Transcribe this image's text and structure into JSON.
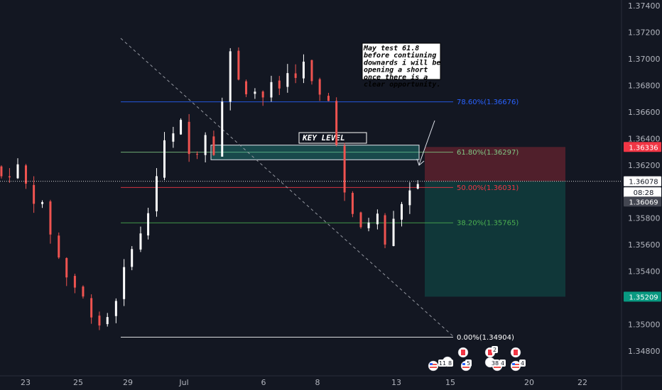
{
  "chart_data": {
    "type": "candlestick",
    "y_axis": {
      "min": 1.347,
      "max": 1.375,
      "tick_labels": [
        "1.37400",
        "1.37200",
        "1.37000",
        "1.36800",
        "1.36600",
        "1.36400",
        "1.36200",
        "1.35800",
        "1.35600",
        "1.35400",
        "1.35000",
        "1.34800"
      ]
    },
    "x_axis": {
      "tick_labels": [
        "23",
        "25",
        "29",
        "Jul",
        "6",
        "8",
        "13",
        "15",
        "20",
        "22"
      ]
    },
    "price_tags": [
      {
        "label": "1.36336",
        "value": 1.36336,
        "color": "#f23645"
      },
      {
        "label": "1.36078",
        "value": 1.36078,
        "color": "#ffffff"
      },
      {
        "label": "08:28",
        "value": 1.35995,
        "color": "#ffffff"
      },
      {
        "label": "1.36069",
        "value": 1.35925,
        "color": "#434651"
      },
      {
        "label": "1.35209",
        "value": 1.35209,
        "color": "#089981"
      }
    ],
    "fibonacci": [
      {
        "label": "0.00%(1.34904)",
        "value": 1.34904,
        "color": "#ffffff"
      },
      {
        "label": "38.20%(1.35765)",
        "value": 1.35765,
        "color": "#4caf50"
      },
      {
        "label": "50.00%(1.36031)",
        "value": 1.36031,
        "color": "#f23645"
      },
      {
        "label": "61.80%(1.36297)",
        "value": 1.36297,
        "color": "#81c784"
      },
      {
        "label": "78.60%(1.36676)",
        "value": 1.36676,
        "color": "#2962ff"
      }
    ],
    "key_level": {
      "label": "KEY LEVEL",
      "low": 1.3624,
      "high": 1.3635
    },
    "short_position": {
      "entry": 1.36078,
      "stop": 1.36336,
      "target": 1.35209
    },
    "annotation": "May test 61.8 before contiuning downards i will be opening a short once there is a clear opportunity.",
    "events": [
      {
        "count": "11"
      },
      {
        "count": "8"
      },
      {
        "count": "5"
      },
      {
        "count": "2"
      },
      {
        "count": "38"
      },
      {
        "count": "4"
      },
      {
        "count": "4"
      }
    ],
    "candle_path": [
      [
        0,
        1.3619
      ],
      [
        0.5,
        1.3611
      ],
      [
        1.5,
        1.3618
      ],
      [
        2.2,
        1.3599
      ],
      [
        3.0,
        1.3588
      ],
      [
        3.6,
        1.3566
      ],
      [
        4.2,
        1.3542
      ],
      [
        5.0,
        1.3528
      ],
      [
        5.6,
        1.3518
      ],
      [
        6.2,
        1.3505
      ],
      [
        6.7,
        1.3498
      ],
      [
        7.3,
        1.3514
      ],
      [
        7.9,
        1.3535
      ],
      [
        8.5,
        1.3561
      ],
      [
        9.1,
        1.3568
      ],
      [
        9.5,
        1.3585
      ],
      [
        10.0,
        1.3612
      ],
      [
        10.5,
        1.3636
      ],
      [
        11.0,
        1.3642
      ],
      [
        11.5,
        1.3651
      ],
      [
        12.0,
        1.3628
      ],
      [
        12.5,
        1.3632
      ],
      [
        13.0,
        1.3645
      ],
      [
        13.5,
        1.3632
      ],
      [
        14.0,
        1.3668
      ],
      [
        14.4,
        1.3706
      ],
      [
        14.8,
        1.3696
      ],
      [
        15.3,
        1.3672
      ],
      [
        15.8,
        1.3685
      ],
      [
        16.3,
        1.3662
      ],
      [
        16.8,
        1.3686
      ],
      [
        17.3,
        1.3668
      ],
      [
        17.8,
        1.3694
      ],
      [
        18.3,
        1.3681
      ],
      [
        18.8,
        1.3702
      ],
      [
        19.3,
        1.3686
      ],
      [
        19.8,
        1.3674
      ],
      [
        20.3,
        1.3668
      ],
      [
        20.8,
        1.3668
      ],
      [
        21.2,
        1.3611
      ],
      [
        21.7,
        1.3588
      ],
      [
        22.2,
        1.3575
      ],
      [
        22.7,
        1.3571
      ],
      [
        23.2,
        1.3582
      ],
      [
        23.6,
        1.3581
      ],
      [
        24.0,
        1.3561
      ],
      [
        24.4,
        1.3574
      ],
      [
        24.8,
        1.3588
      ],
      [
        25.2,
        1.3596
      ],
      [
        25.6,
        1.3601
      ],
      [
        26.0,
        1.3603
      ],
      [
        26.4,
        1.3606
      ],
      [
        26.8,
        1.3596
      ],
      [
        27.2,
        1.3585
      ],
      [
        27.6,
        1.3588
      ],
      [
        28.0,
        1.3584
      ],
      [
        28.4,
        1.3575
      ],
      [
        28.8,
        1.3566
      ],
      [
        29.2,
        1.3568
      ],
      [
        29.6,
        1.3571
      ],
      [
        30.0,
        1.3562
      ],
      [
        30.4,
        1.3551
      ],
      [
        30.8,
        1.3549
      ],
      [
        31.2,
        1.3541
      ],
      [
        31.6,
        1.3535
      ],
      [
        32.0,
        1.3528
      ],
      [
        32.4,
        1.3539
      ],
      [
        32.8,
        1.3548
      ],
      [
        33.2,
        1.3547
      ],
      [
        33.6,
        1.3538
      ],
      [
        34.0,
        1.3553
      ],
      [
        34.4,
        1.3554
      ],
      [
        34.8,
        1.3562
      ],
      [
        35.2,
        1.3568
      ],
      [
        35.6,
        1.3586
      ],
      [
        36.0,
        1.3601
      ],
      [
        36.4,
        1.3612
      ],
      [
        36.8,
        1.3608
      ],
      [
        37.2,
        1.3612
      ],
      [
        37.6,
        1.3615
      ],
      [
        38.0,
        1.3607
      ],
      [
        38.4,
        1.3601
      ],
      [
        38.8,
        1.3598
      ],
      [
        39.2,
        1.3589
      ],
      [
        39.6,
        1.3561
      ],
      [
        40.0,
        1.3548
      ],
      [
        40.4,
        1.3531
      ],
      [
        40.8,
        1.3509
      ],
      [
        41.2,
        1.3511
      ],
      [
        41.6,
        1.3508
      ],
      [
        42.0,
        1.3504
      ],
      [
        42.4,
        1.3495
      ],
      [
        42.8,
        1.3498
      ],
      [
        43.2,
        1.3508
      ],
      [
        43.6,
        1.3575
      ],
      [
        44.0,
        1.3595
      ],
      [
        44.4,
        1.3596
      ],
      [
        44.8,
        1.3601
      ],
      [
        45.2,
        1.3603
      ],
      [
        45.6,
        1.3619
      ],
      [
        46.0,
        1.3615
      ],
      [
        46.4,
        1.3612
      ],
      [
        46.8,
        1.3601
      ],
      [
        47.2,
        1.3596
      ],
      [
        47.6,
        1.3592
      ],
      [
        48.0,
        1.3584
      ],
      [
        48.4,
        1.3578
      ],
      [
        48.8,
        1.3572
      ],
      [
        49.2,
        1.3568
      ],
      [
        49.6,
        1.3567
      ],
      [
        50.0,
        1.3541
      ],
      [
        50.4,
        1.3578
      ],
      [
        50.8,
        1.3594
      ],
      [
        51.2,
        1.3606
      ]
    ]
  }
}
